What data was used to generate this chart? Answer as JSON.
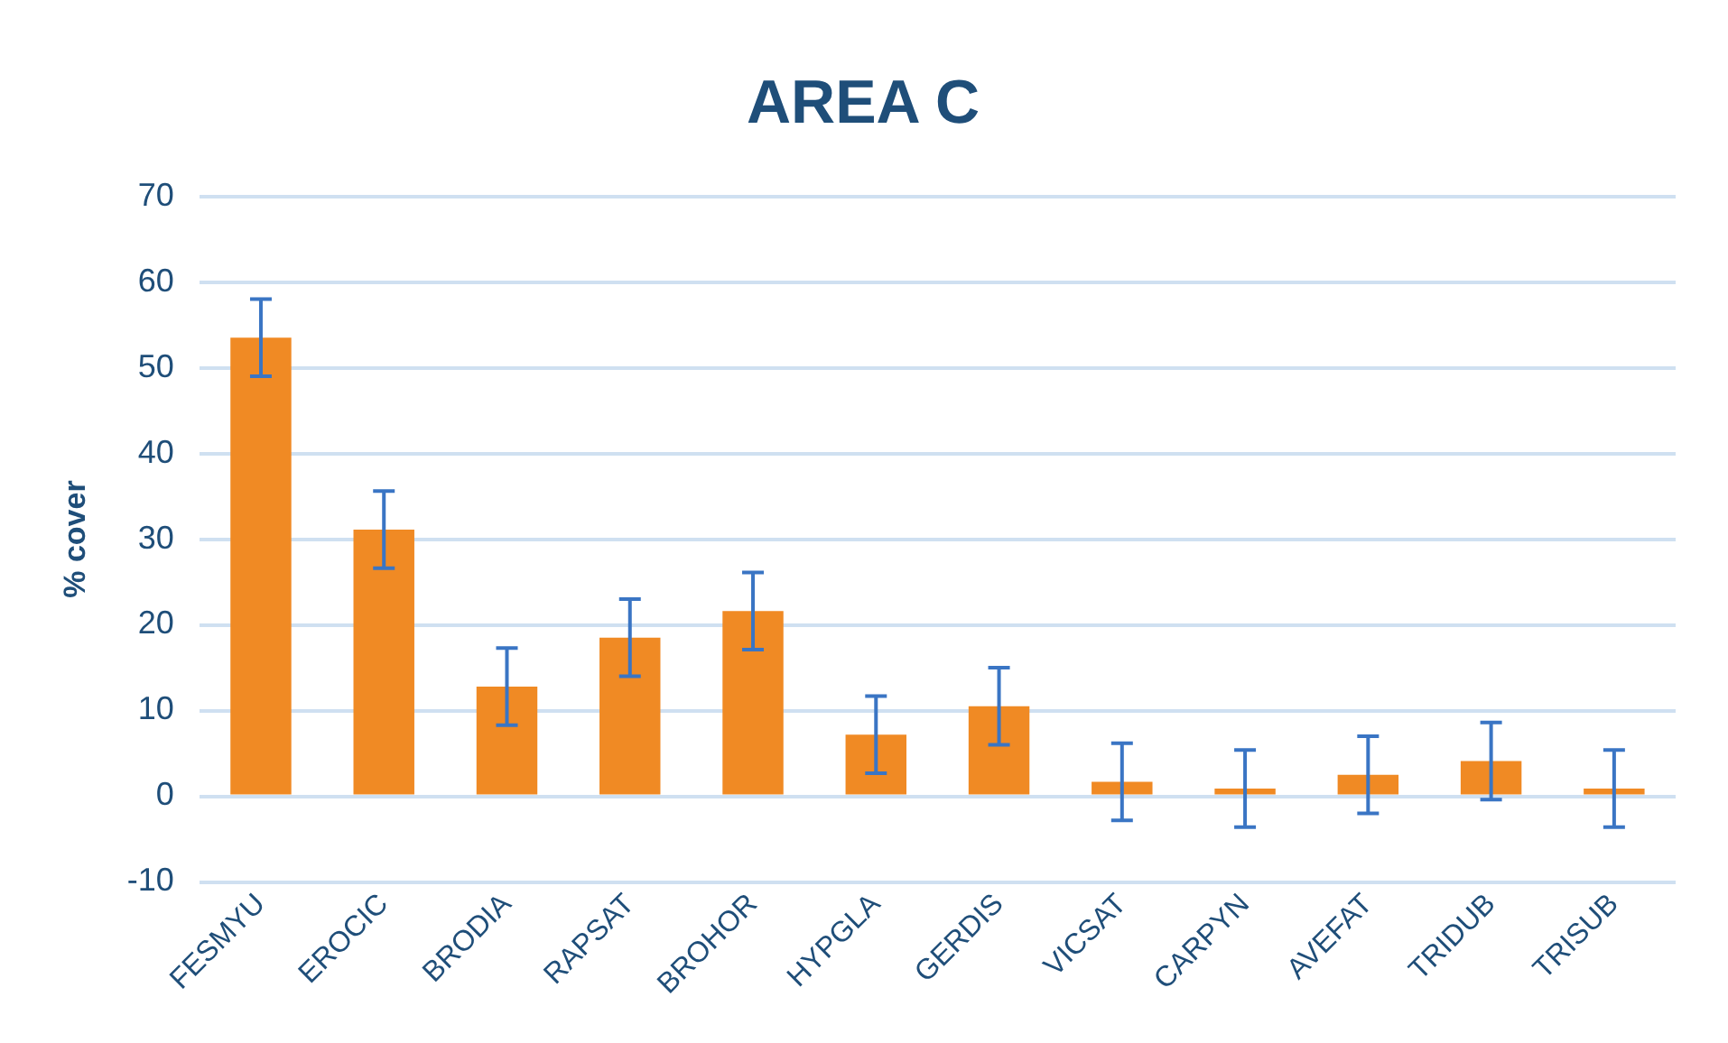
{
  "chart_data": {
    "type": "bar",
    "title": "AREA C",
    "ylabel": "% cover",
    "categories": [
      "FESMYU",
      "EROCIC",
      "BRODIA",
      "RAPSAT",
      "BROHOR",
      "HYPGLA",
      "GERDIS",
      "VICSAT",
      "CARPYN",
      "AVEFAT",
      "TRIDUB",
      "TRISUB"
    ],
    "series": [
      {
        "color": "#f08a24",
        "values": [
          53.5,
          31.1,
          12.8,
          18.5,
          21.6,
          7.2,
          10.5,
          1.7,
          0.9,
          2.5,
          4.1,
          0.9
        ],
        "errors": [
          4.5,
          4.5,
          4.5,
          4.5,
          4.5,
          4.5,
          4.5,
          4.5,
          4.5,
          4.5,
          4.5,
          4.5
        ]
      }
    ],
    "ylim": [
      -10,
      70
    ],
    "yticks": [
      -10,
      0,
      10,
      20,
      30,
      40,
      50,
      60,
      70
    ],
    "grid": "y",
    "legend": false
  }
}
